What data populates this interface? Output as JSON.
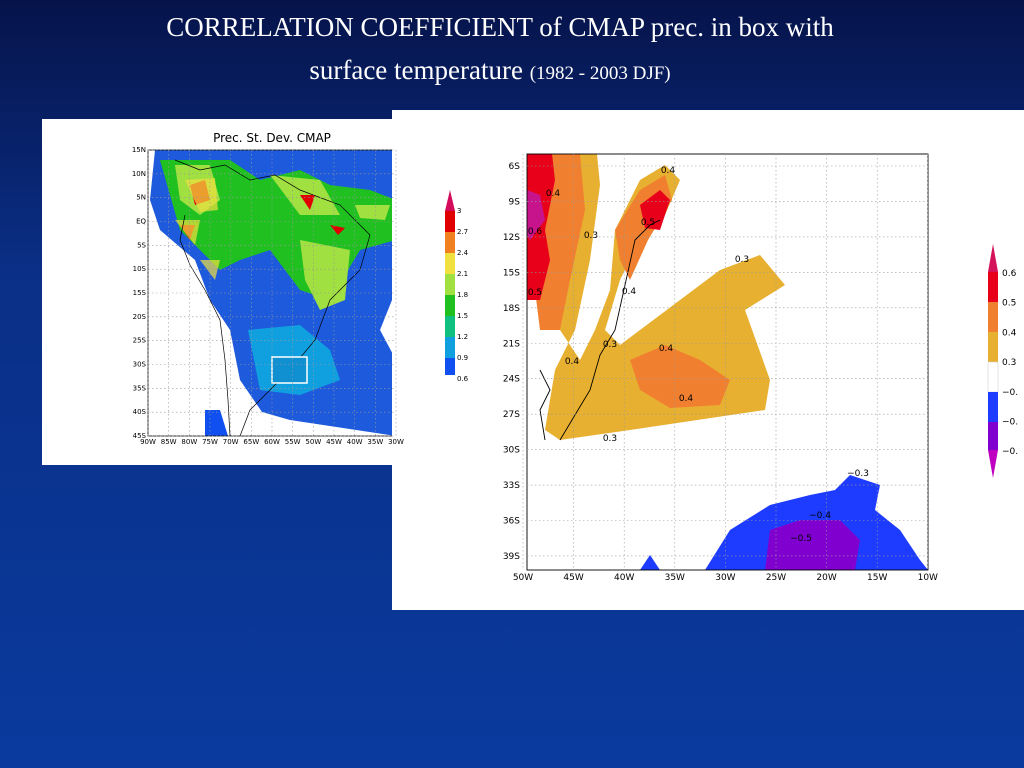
{
  "slide": {
    "title_line1": "CORRELATION COEFFICIENT of CMAP prec. in box with",
    "title_line2": "surface temperature",
    "title_period": "(1982 - 2003 DJF)"
  },
  "left_map": {
    "title": "Prec. St. Dev.   CMAP",
    "lat_labels": [
      "15N",
      "10N",
      "5N",
      "EQ",
      "5S",
      "10S",
      "15S",
      "20S",
      "25S",
      "30S",
      "35S",
      "40S",
      "45S"
    ],
    "lon_labels": [
      "90W",
      "85W",
      "80W",
      "75W",
      "70W",
      "65W",
      "60W",
      "55W",
      "50W",
      "45W",
      "40W",
      "35W",
      "30W"
    ],
    "colorbar_labels": [
      "3",
      "2.7",
      "2.4",
      "2.1",
      "1.8",
      "1.5",
      "1.2",
      "0.9",
      "0.6"
    ]
  },
  "right_map": {
    "lat_labels": [
      "6S",
      "9S",
      "12S",
      "15S",
      "18S",
      "21S",
      "24S",
      "27S",
      "30S",
      "33S",
      "36S",
      "39S"
    ],
    "lon_labels": [
      "50W",
      "45W",
      "40W",
      "35W",
      "30W",
      "25W",
      "20W",
      "15W",
      "10W"
    ],
    "contour_labels": [
      "0.4",
      "0.4",
      "0.5",
      "0.6",
      "0.3",
      "0.3",
      "0.4",
      "0.5",
      "0.3",
      "0.4",
      "0.4",
      "0.4",
      "0.3",
      "−0.3",
      "−0.4",
      "−0.5"
    ],
    "colorbar_labels": [
      "0.6",
      "0.5",
      "0.4",
      "0.3",
      "−0.",
      "−0.",
      "−0."
    ]
  }
}
